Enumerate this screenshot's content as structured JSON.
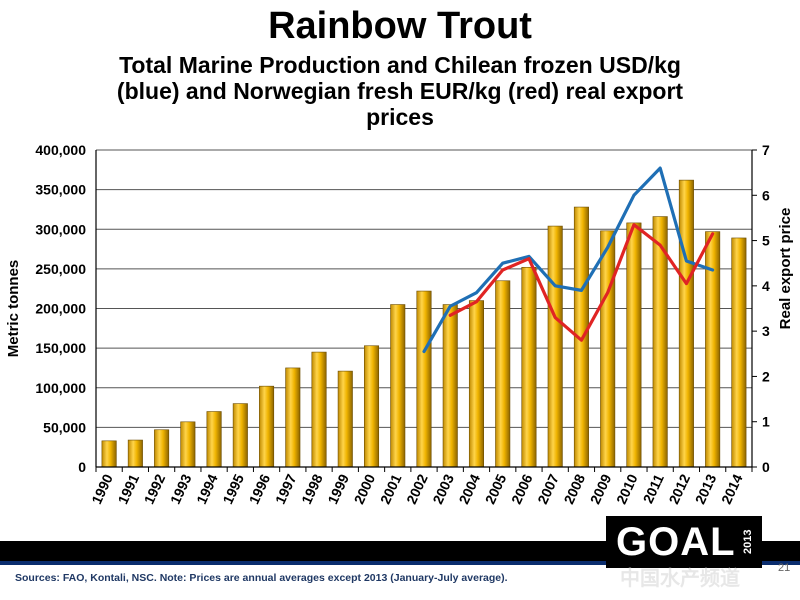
{
  "title": "Rainbow Trout",
  "subtitle_lines": [
    "Total Marine Production and Chilean frozen USD/kg",
    "(blue) and Norwegian fresh EUR/kg  (red) real export",
    "prices"
  ],
  "footer": {
    "sources": "Sources: FAO,  Kontali, NSC. Note: Prices are annual averages  except 2013 (January-July  average).",
    "logo_text": "GOAL",
    "logo_year": "2013",
    "watermark": "中国水产频道",
    "slide_number": "21"
  },
  "colors": {
    "bar_fill": "#f0b400",
    "bar_fill_dark": "#8c6400",
    "blue_line": "#1f6fb5",
    "red_line": "#e02424"
  },
  "chart_data": {
    "type": "bar",
    "categories": [
      "1990",
      "1991",
      "1992",
      "1993",
      "1994",
      "1995",
      "1996",
      "1997",
      "1998",
      "1999",
      "2000",
      "2001",
      "2002",
      "2003",
      "2004",
      "2005",
      "2006",
      "2007",
      "2008",
      "2009",
      "2010",
      "2011",
      "2012",
      "2013",
      "2014"
    ],
    "series": [
      {
        "values": [
          33000,
          34000,
          47000,
          57000,
          70000,
          80000,
          102000,
          125000,
          145000,
          121000,
          153000,
          205000,
          222000,
          205000,
          210000,
          235000,
          252000,
          304000,
          328000,
          298000,
          308000,
          316000,
          362000,
          297000,
          289000
        ]
      }
    ],
    "line_series": [
      {
        "axis": "right",
        "x": [
          "2002",
          "2003",
          "2004",
          "2005",
          "2006",
          "2007",
          "2008",
          "2009",
          "2010",
          "2011",
          "2012",
          "2013"
        ],
        "values": [
          2.55,
          3.55,
          3.85,
          4.5,
          4.65,
          4.0,
          3.9,
          4.85,
          6.0,
          6.6,
          4.55,
          4.35
        ]
      },
      {
        "axis": "right",
        "x": [
          "2003",
          "2004",
          "2005",
          "2006",
          "2007",
          "2008",
          "2009",
          "2010",
          "2011",
          "2012",
          "2013"
        ],
        "values": [
          3.35,
          3.65,
          4.35,
          4.6,
          3.3,
          2.8,
          3.85,
          5.35,
          4.9,
          4.05,
          5.15
        ]
      }
    ],
    "ylabel": "Metric tonnes",
    "ylim": [
      0,
      400000
    ],
    "y_ticks": [
      "0",
      "50,000",
      "100,000",
      "150,000",
      "200,000",
      "250,000",
      "300,000",
      "350,000",
      "400,000"
    ],
    "y2label": "Real export price",
    "y2lim": [
      0,
      7
    ],
    "y2_ticks": [
      "0",
      "1",
      "2",
      "3",
      "4",
      "5",
      "6",
      "7"
    ],
    "grid": true,
    "legend": "none"
  }
}
